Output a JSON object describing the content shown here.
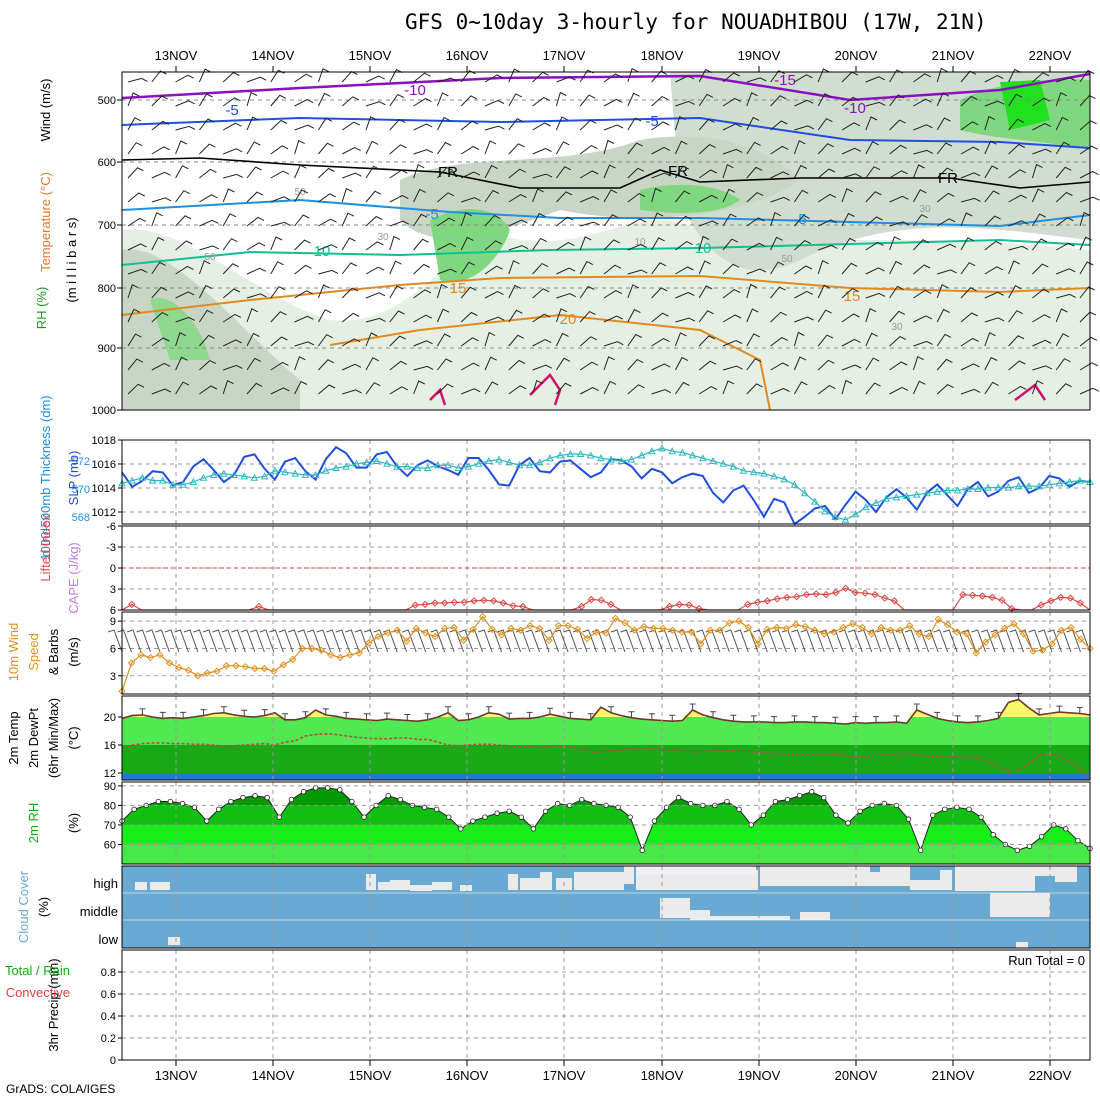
{
  "title": "GFS 0~10day 3-hourly for NOUADHIBOU (17W, 21N)",
  "credit": "GrADS: COLA/IGES",
  "dates": [
    "13NOV",
    "14NOV",
    "15NOV",
    "16NOV",
    "17NOV",
    "18NOV",
    "19NOV",
    "20NOV",
    "21NOV",
    "22NOV"
  ],
  "colors": {
    "purple": "#8a10c0",
    "blue": "#1f4fe0",
    "lightblue": "#1f90e0",
    "teal": "#10c090",
    "orange": "#e08a20",
    "magenta": "#d0106a",
    "cloud": "#6aaad2",
    "cloud_gap": "#ebebeb",
    "cloud_clear": "#f2eff8",
    "green_dark": "#10b010",
    "green_mid": "#28d028",
    "green_light": "#5ae85a",
    "yellow": "#f8f86a"
  },
  "panel_labels": {
    "upper_rh": "RH (%)",
    "upper_temp": "Temperature (°C)",
    "upper_wind": "Wind (m/s)",
    "upper_mb": "(m i l l i b a r s)",
    "slp": "SLP (mb)",
    "thick": "1000-500mb Thickness (dm)",
    "li": "Lifted Index",
    "cape": "CAPE (J/kg)",
    "w10": "10m Wind",
    "w10b": "Speed",
    "w10c": "& Barbs",
    "w10u": "(m/s)",
    "t2a": "2m Temp",
    "t2b": "2m DewPt",
    "t2c": "(6hr Min/Max)",
    "t2u": "(°C)",
    "rh2": "2m RH",
    "rh2u": "(%)",
    "cloud": "Cloud Cover",
    "cloudu": "(%)",
    "precipa": "Total / Rain",
    "precipb": "Convective",
    "precipc": "3hr Precip (mm)",
    "run_total": "Run Total = 0"
  },
  "cloud_levels": [
    "high",
    "middle",
    "low"
  ],
  "upper_air": {
    "yticks": [
      "500",
      "600",
      "700",
      "800",
      "900",
      "1000"
    ],
    "contour_labels": {
      "purple": [
        "-10",
        "-15",
        "-10"
      ],
      "blue": [
        "-5",
        "-5"
      ],
      "black": [
        "FR",
        "FR",
        "FR"
      ],
      "lightblue": [
        "-5",
        "-5"
      ],
      "teal": [
        "10",
        "10"
      ],
      "orange": [
        "15",
        "15",
        "20"
      ],
      "gray": [
        "50",
        "30",
        "10",
        "30",
        "50",
        "50",
        "30"
      ]
    }
  },
  "chart_data": [
    {
      "type": "line",
      "panel": "SLP and Thickness",
      "x": "3-hourly steps, 12NOV12Z to 22NOV06Z",
      "series": [
        {
          "name": "SLP (mb)",
          "ylim": [
            1011,
            1018
          ],
          "yticks": [
            "1018",
            "1016",
            "1014",
            "1012"
          ],
          "values": [
            1015.3,
            1014.1,
            1014.6,
            1015.4,
            1015.3,
            1014.2,
            1014.5,
            1015.8,
            1016.4,
            1015.5,
            1014.5,
            1015.1,
            1016.6,
            1016.8,
            1015.6,
            1014.7,
            1016.2,
            1016.5,
            1015.4,
            1014.7,
            1016.4,
            1017.4,
            1016.9,
            1015.7,
            1015.7,
            1016.8,
            1017.0,
            1015.8,
            1015.0,
            1015.9,
            1016.3,
            1015.8,
            1015.5,
            1015.1,
            1016.5,
            1016.5,
            1015.5,
            1014.3,
            1014.2,
            1015.9,
            1016.5,
            1015.4,
            1015.3,
            1016.2,
            1016.3,
            1015.6,
            1014.9,
            1015.3,
            1016.4,
            1016.3,
            1015.8,
            1014.8,
            1015.6,
            1015.3,
            1014.4,
            1014.9,
            1015.2,
            1015.0,
            1013.6,
            1012.8,
            1013.8,
            1014.2,
            1013.0,
            1011.6,
            1013.1,
            1012.8,
            1011.0,
            1011.6,
            1012.3,
            1012.5,
            1011.4,
            1012.6,
            1013.7,
            1013.0,
            1012.0,
            1013.2,
            1013.9,
            1013.2,
            1012.2,
            1013.6,
            1014.3,
            1013.4,
            1012.5,
            1013.9,
            1014.5,
            1013.3,
            1013.7,
            1014.6,
            1014.9,
            1013.6,
            1014.0,
            1015.0,
            1014.8,
            1014.1,
            1014.6,
            1014.5
          ]
        },
        {
          "name": "Thickness (dm)",
          "ylim": [
            567.5,
            573.5
          ],
          "yticks": [
            "572",
            "570",
            "568"
          ],
          "values": [
            570.4,
            570.6,
            570.8,
            570.6,
            570.6,
            570.3,
            570.3,
            570.5,
            570.8,
            571.0,
            571.1,
            571.0,
            570.9,
            570.8,
            570.9,
            571.3,
            571.2,
            571.1,
            571.0,
            571.0,
            571.3,
            571.5,
            571.6,
            571.8,
            571.9,
            572.0,
            571.8,
            571.6,
            571.6,
            571.5,
            571.5,
            571.7,
            571.7,
            571.5,
            571.6,
            571.8,
            572.0,
            572.1,
            571.9,
            571.7,
            571.7,
            571.9,
            572.2,
            572.4,
            572.5,
            572.5,
            572.4,
            572.2,
            572.1,
            572.0,
            572.1,
            572.4,
            572.7,
            572.9,
            572.7,
            572.6,
            572.4,
            572.2,
            572.0,
            571.8,
            571.6,
            571.3,
            571.2,
            571.1,
            570.9,
            570.7,
            570.3,
            569.7,
            569.1,
            568.4,
            568.0,
            567.8,
            568.2,
            568.7,
            569.0,
            569.3,
            569.4,
            569.5,
            569.6,
            569.7,
            569.8,
            569.9,
            569.9,
            570.0,
            570.0,
            570.1,
            570.1,
            570.1,
            570.2,
            570.2,
            570.2,
            570.3,
            570.4,
            570.5,
            570.6,
            570.5
          ]
        }
      ]
    },
    {
      "type": "line",
      "panel": "Lifted Index / CAPE",
      "yticks": [
        "-6",
        "-3",
        "0",
        "3",
        "6"
      ],
      "ylim": [
        -6,
        6
      ],
      "series": [
        {
          "name": "Lifted Index",
          "values": [
            6,
            5.2,
            6,
            6,
            6,
            6,
            6,
            6,
            6,
            6,
            6,
            6,
            6,
            6,
            5.5,
            6,
            6,
            6,
            6,
            6,
            6,
            6,
            6,
            6,
            6,
            6,
            6,
            6,
            6,
            6,
            5.3,
            5.2,
            5.0,
            5.0,
            4.9,
            4.9,
            4.7,
            4.6,
            4.7,
            5.0,
            5.4,
            5.5,
            6,
            6,
            6,
            6,
            6,
            5.5,
            4.5,
            4.6,
            5.2,
            6,
            6,
            6,
            6,
            6,
            5.5,
            5.2,
            5.3,
            5.8,
            6,
            6,
            6,
            6,
            5.2,
            4.9,
            4.7,
            4.4,
            4.2,
            4.1,
            3.8,
            3.7,
            3.8,
            3.5,
            2.9,
            3.5,
            3.6,
            3.8,
            4.3,
            4.7,
            6,
            6,
            6,
            6,
            6,
            6,
            3.8,
            3.9,
            4.0,
            4.2,
            4.6,
            5.8,
            6,
            6,
            5.3,
            4.7,
            4.2,
            4.3,
            5.0,
            6
          ]
        }
      ]
    },
    {
      "type": "line",
      "panel": "10m Wind Speed",
      "ylim": [
        1,
        10
      ],
      "yticks": [
        "9",
        "6",
        "3"
      ],
      "series": [
        {
          "name": "10m Wind Speed",
          "values": [
            1.3,
            4.4,
            5.3,
            5.0,
            5.3,
            4.4,
            3.9,
            3.6,
            3.0,
            3.3,
            3.5,
            4.1,
            4.1,
            4.0,
            3.8,
            3.8,
            3.5,
            4.2,
            4.8,
            6.0,
            6.0,
            5.8,
            5.3,
            5.0,
            5.3,
            5.5,
            6.6,
            7.3,
            7.7,
            8.0,
            6.8,
            8.2,
            7.7,
            7.3,
            8.2,
            8.3,
            6.9,
            8.1,
            9.5,
            8.1,
            7.5,
            8.2,
            8.0,
            8.5,
            8.2,
            6.9,
            8.5,
            8.5,
            8.1,
            7.1,
            7.8,
            7.7,
            9.3,
            8.8,
            8.0,
            8.4,
            8.2,
            8.2,
            8.0,
            7.8,
            7.8,
            6.5,
            8.0,
            8.0,
            8.8,
            9.0,
            8.3,
            6.5,
            8.1,
            8.3,
            8.2,
            8.6,
            8.4,
            8.0,
            7.6,
            7.8,
            8.3,
            8.7,
            8.3,
            7.6,
            8.3,
            8.0,
            8.0,
            8.5,
            7.6,
            7.3,
            9.2,
            8.6,
            7.8,
            7.6,
            5.5,
            6.7,
            7.5,
            8.2,
            8.7,
            7.6,
            5.7,
            5.8,
            6.5,
            8.0,
            8.3,
            7.0,
            6.0
          ]
        }
      ]
    },
    {
      "type": "area",
      "panel": "2m Temp / DewPt",
      "ylim": [
        11,
        23
      ],
      "yticks": [
        "20",
        "16",
        "12"
      ],
      "series": [
        {
          "name": "2m Temp",
          "values": [
            19.8,
            20.2,
            20.3,
            20.0,
            19.8,
            19.9,
            19.8,
            20.0,
            20.2,
            20.5,
            20.6,
            20.3,
            20.1,
            20.0,
            20.2,
            20.6,
            19.6,
            19.6,
            19.9,
            21.0,
            20.3,
            20.1,
            19.8,
            19.7,
            19.6,
            19.5,
            19.7,
            19.6,
            19.5,
            19.4,
            19.6,
            20.0,
            20.6,
            19.5,
            19.6,
            20.0,
            20.6,
            20.4,
            19.7,
            19.8,
            19.8,
            20.0,
            20.4,
            20.1,
            19.8,
            19.7,
            19.6,
            21.4,
            20.6,
            20.2,
            19.9,
            19.7,
            19.6,
            19.5,
            19.4,
            19.5,
            21.0,
            20.3,
            19.9,
            19.6,
            19.4,
            19.3,
            19.3,
            19.3,
            19.2,
            19.2,
            19.3,
            19.3,
            19.2,
            19.2,
            19.1,
            19.0,
            19.2,
            19.1,
            19.2,
            19.2,
            19.3,
            19.1,
            21.0,
            20.4,
            19.8,
            19.5,
            19.3,
            19.2,
            19.3,
            19.5,
            19.8,
            22.1,
            22.5,
            21.3,
            20.3,
            20.5,
            20.7,
            20.6,
            20.5,
            20.3
          ]
        },
        {
          "name": "2m DewPt",
          "values": [
            15.6,
            16.0,
            16.2,
            16.3,
            16.3,
            16.2,
            16.2,
            16.1,
            16.1,
            16.0,
            15.8,
            15.9,
            16.0,
            16.1,
            16.2,
            16.0,
            16.4,
            16.6,
            17.3,
            17.5,
            17.6,
            17.5,
            17.3,
            17.1,
            17.0,
            16.9,
            16.9,
            17.0,
            17.0,
            16.8,
            16.8,
            16.4,
            16.0,
            15.9,
            16.0,
            16.1,
            16.1,
            16.0,
            15.9,
            15.7,
            15.8,
            15.7,
            15.9,
            15.9,
            15.7,
            15.5,
            15.0,
            15.0,
            15.2,
            15.3,
            15.5,
            15.6,
            15.6,
            15.4,
            15.3,
            15.2,
            15.0,
            15.1,
            15.3,
            15.3,
            15.2,
            15.1,
            15.0,
            14.9,
            14.8,
            14.7,
            14.7,
            14.7,
            14.7,
            14.7,
            14.6,
            14.5,
            14.4,
            14.4,
            14.5,
            14.7,
            14.8,
            14.8,
            14.7,
            14.4,
            14.3,
            14.3,
            14.4,
            14.3,
            14.1,
            13.6,
            12.9,
            12.3,
            12.5,
            13.4,
            14.5,
            14.8,
            14.5,
            13.6,
            12.7,
            11.2
          ]
        }
      ]
    },
    {
      "type": "area",
      "panel": "2m RH",
      "ylim": [
        50,
        92
      ],
      "yticks": [
        "90",
        "80",
        "70",
        "60"
      ],
      "series": [
        {
          "name": "2m RH",
          "values": [
            72,
            78,
            80,
            82,
            82,
            81,
            79,
            72,
            78,
            82,
            84,
            85,
            84,
            74,
            83,
            87,
            89,
            89,
            88,
            82,
            74,
            80,
            85,
            83,
            80,
            79,
            78,
            74,
            68,
            72,
            74,
            76,
            77,
            74,
            68,
            77,
            81,
            80,
            83,
            81,
            80,
            79,
            74,
            57,
            72,
            79,
            84,
            81,
            80,
            80,
            82,
            78,
            70,
            75,
            82,
            83,
            85,
            87,
            84,
            75,
            71,
            77,
            80,
            81,
            80,
            73,
            57,
            75,
            78,
            79,
            78,
            74,
            65,
            60,
            57,
            59,
            64,
            70,
            68,
            62,
            58
          ]
        }
      ]
    },
    {
      "type": "bar",
      "panel": "3hr Precip",
      "ylim": [
        0,
        1
      ],
      "yticks": [
        "0.8",
        "0.6",
        "0.4",
        "0.2",
        "0"
      ],
      "series": [
        {
          "name": "Total / Rain",
          "values": []
        }
      ]
    }
  ]
}
